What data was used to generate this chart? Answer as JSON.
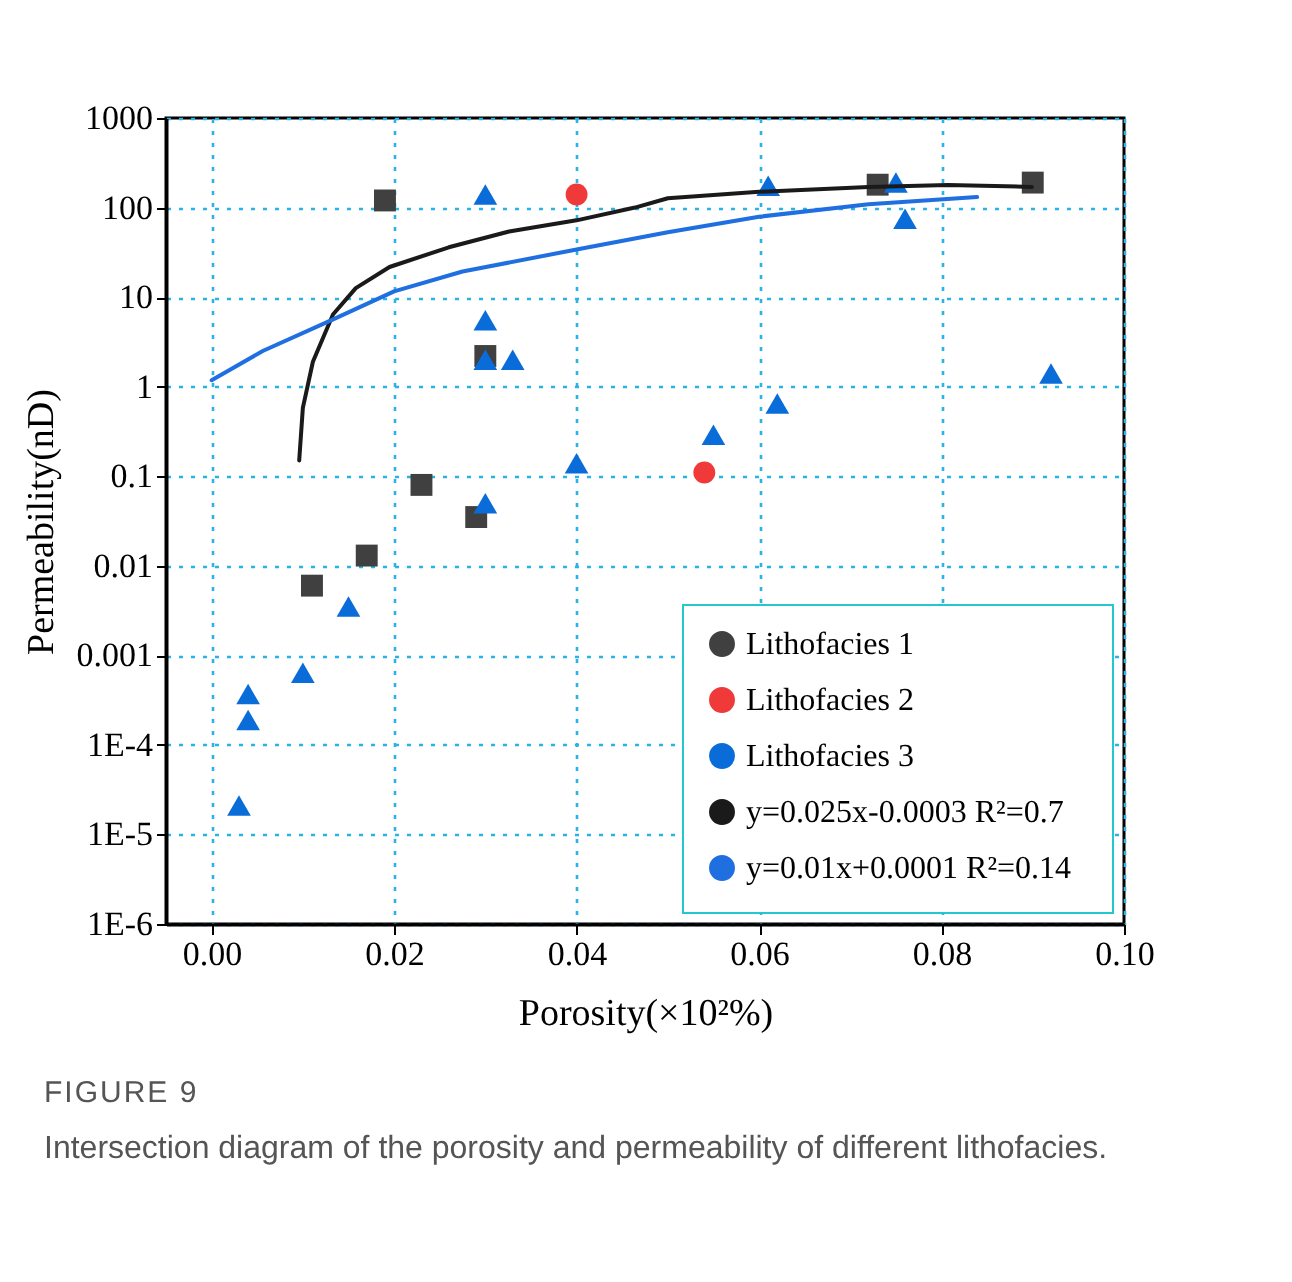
{
  "chart_data": {
    "type": "scatter",
    "xlabel": "Porosity(×10²%)",
    "ylabel": "Permeability(nD)",
    "log": true,
    "grid": true,
    "legend": "bottom right",
    "xlim": [
      -0.005,
      0.1
    ],
    "xticks": [
      {
        "value": 0,
        "label": "0.00"
      },
      {
        "value": 0.02,
        "label": "0.02"
      },
      {
        "value": 0.04,
        "label": "0.04"
      },
      {
        "value": 0.06,
        "label": "0.06"
      },
      {
        "value": 0.08,
        "label": "0.08"
      },
      {
        "value": 0.1,
        "label": "0.10"
      }
    ],
    "ylim": [
      1e-06,
      1000
    ],
    "yticks": [
      {
        "value": 1e-06,
        "label": "1E-6"
      },
      {
        "value": 1e-05,
        "label": "1E-5"
      },
      {
        "value": 0.0001,
        "label": "1E-4"
      },
      0.001,
      0.01,
      0.1,
      1,
      10,
      100,
      1000
    ],
    "series": [
      {
        "name": "Lithofacies 1",
        "marker": "square",
        "color": "#404040",
        "x": [
          0.011,
          0.017,
          0.019,
          0.023,
          0.029,
          0.03,
          0.073,
          0.09
        ],
        "values": [
          0.006,
          0.013,
          120,
          0.08,
          0.035,
          2.2,
          180,
          190
        ]
      },
      {
        "name": "Lithofacies 2",
        "marker": "circle",
        "color": "#f03a3a",
        "x": [
          0.04,
          0.054
        ],
        "values": [
          140,
          0.11
        ]
      },
      {
        "name": "Lithofacies 3",
        "marker": "triangle",
        "color": "#0a6cd8",
        "x": [
          0.003,
          0.004,
          0.004,
          0.01,
          0.015,
          0.03,
          0.03,
          0.03,
          0.03,
          0.033,
          0.04,
          0.055,
          0.061,
          0.062,
          0.075,
          0.076,
          0.092
        ],
        "values": [
          2.1e-05,
          0.00019,
          0.00037,
          0.00064,
          0.0035,
          0.05,
          2,
          5.5,
          140,
          2,
          0.14,
          0.29,
          175,
          0.65,
          190,
          75,
          1.4
        ]
      },
      {
        "name": "y=0.025x-0.0003  R²=0.7",
        "type": "line",
        "color": "#1a1a1a",
        "x": [
          0.0096,
          0.01,
          0.0111,
          0.0133,
          0.0158,
          0.0195,
          0.026,
          0.0326,
          0.04,
          0.0464,
          0.05,
          0.06,
          0.072,
          0.0807,
          0.0899
        ],
        "values": [
          0.15,
          0.58,
          1.9,
          6.4,
          12.6,
          21.7,
          36,
          54,
          72,
          100,
          127,
          150,
          170,
          179,
          170
        ]
      },
      {
        "name": "y=0.01x+0.0001   R²=0.14",
        "type": "line",
        "color": "#1f6fe0",
        "x": [
          0.0,
          0.0056,
          0.0129,
          0.02,
          0.0275,
          0.04,
          0.05,
          0.06,
          0.072,
          0.0839
        ],
        "values": [
          1.18,
          2.5,
          5.4,
          11.6,
          19.3,
          34,
          53,
          79,
          109,
          131
        ]
      }
    ],
    "annotations": [
      "FIGURE 9",
      "Intersection diagram of the porosity and permeability of different lithofacies."
    ]
  }
}
